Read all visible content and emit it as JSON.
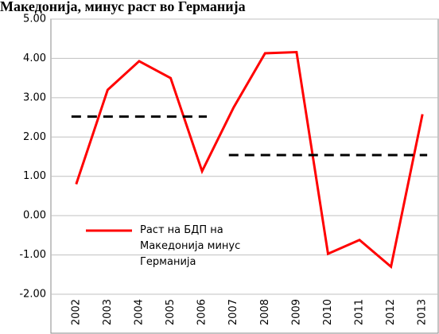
{
  "chart_data": {
    "type": "line",
    "title": "Македонија, минус раст во Германија",
    "categories": [
      "2002",
      "2003",
      "2004",
      "2005",
      "2006",
      "2007",
      "2008",
      "2009",
      "2010",
      "2011",
      "2012",
      "2013"
    ],
    "series": [
      {
        "name": "Раст на БДП на Македонија минус Германија",
        "color": "#ff0000",
        "values": [
          0.8,
          3.2,
          3.93,
          3.5,
          1.13,
          2.75,
          4.13,
          4.16,
          -0.97,
          -0.62,
          -1.3,
          2.58
        ]
      },
      {
        "color": "#000000",
        "dashed": true,
        "values": [
          2.52,
          2.52,
          2.52,
          2.52,
          2.52,
          null,
          null,
          null,
          null,
          null,
          null,
          null
        ]
      },
      {
        "color": "#000000",
        "dashed": true,
        "values": [
          null,
          null,
          null,
          null,
          null,
          1.54,
          1.54,
          1.54,
          1.54,
          1.54,
          1.54,
          1.54
        ]
      }
    ],
    "ylim": [
      -2,
      5
    ],
    "yticks": [
      {
        "value": -2,
        "label": "-2.00"
      },
      {
        "value": -1,
        "label": "-1.00"
      },
      {
        "value": 0,
        "label": "0.00"
      },
      {
        "value": 1,
        "label": "1.00"
      },
      {
        "value": 2,
        "label": "2.00"
      },
      {
        "value": 3,
        "label": "3.00"
      },
      {
        "value": 4,
        "label": "4.00"
      },
      {
        "value": 5,
        "label": "5.00"
      }
    ],
    "grid": true
  }
}
